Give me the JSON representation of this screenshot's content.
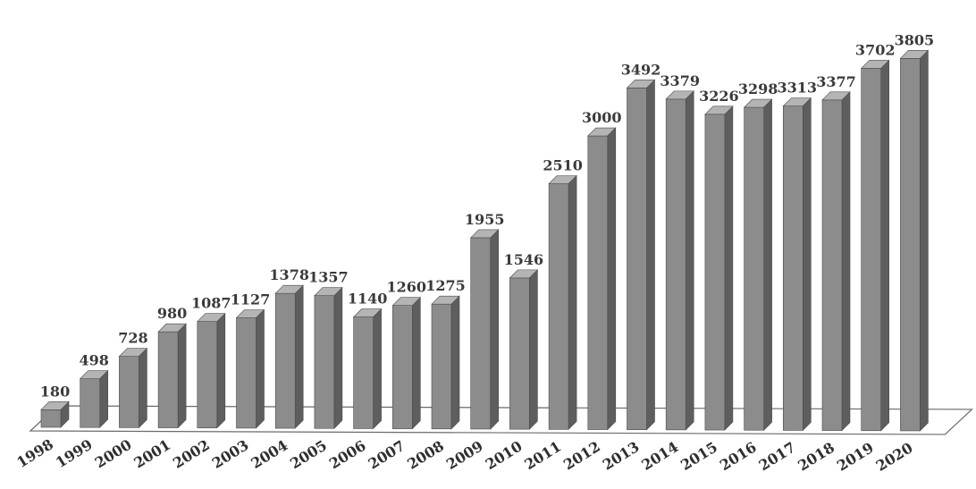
{
  "chart_data": {
    "type": "bar",
    "title": "",
    "xlabel": "",
    "ylabel": "",
    "categories": [
      "1998",
      "1999",
      "2000",
      "2001",
      "2002",
      "2003",
      "2004",
      "2005",
      "2006",
      "2007",
      "2008",
      "2009",
      "2010",
      "2011",
      "2012",
      "2013",
      "2014",
      "2015",
      "2016",
      "2017",
      "2018",
      "2019",
      "2020"
    ],
    "values": [
      180,
      498,
      728,
      980,
      1087,
      1127,
      1378,
      1357,
      1140,
      1260,
      1275,
      1955,
      1546,
      2510,
      3000,
      3492,
      3379,
      3226,
      3298,
      3313,
      3377,
      3702,
      3805
    ],
    "value_labels": [
      "180",
      "498",
      "728",
      "980",
      "1087",
      "1127",
      "1378",
      "1357",
      "1140",
      "1260",
      "1275",
      "1955",
      "1546",
      "2510",
      "3000",
      "3492",
      "3379",
      "3226",
      "3298",
      "3313",
      "3377",
      "3702",
      "3805"
    ],
    "ylim": [
      0,
      3900
    ],
    "grid": false,
    "legend": "none",
    "style": "3d-column",
    "colors": {
      "bar_front": "#8c8c8c",
      "bar_side": "#5e5e5e",
      "bar_top": "#b4b4b4",
      "floor_stroke": "#6a6a6a"
    }
  }
}
